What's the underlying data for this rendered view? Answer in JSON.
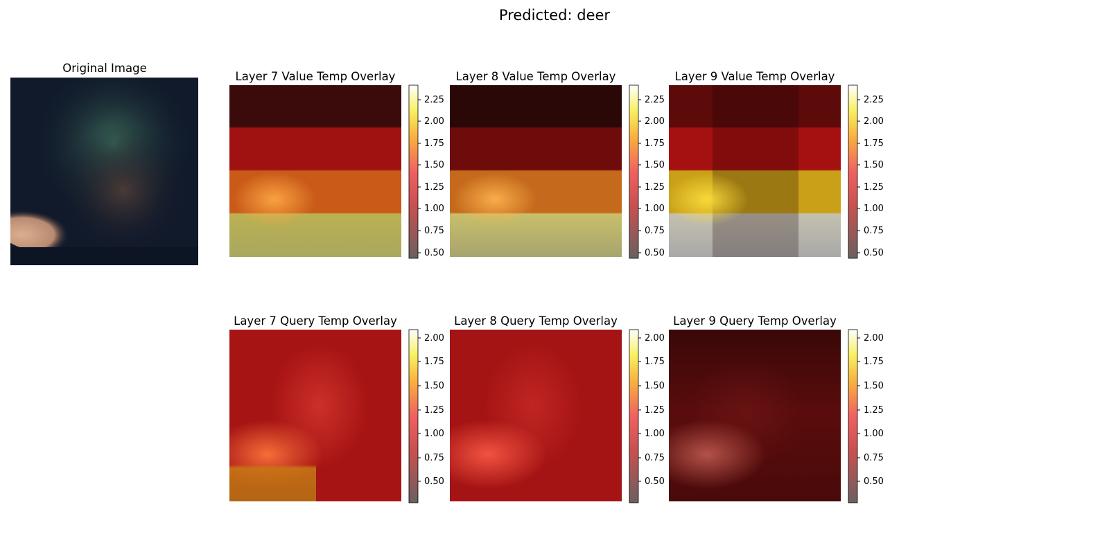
{
  "figure": {
    "title": "Predicted: deer"
  },
  "chart_data": [
    {
      "type": "heatmap",
      "title": "Original Image",
      "colorbar": null
    },
    {
      "type": "heatmap",
      "title": "Layer 7 Value Temp Overlay",
      "colorbar": {
        "range": [
          0.45,
          2.4
        ],
        "ticks": [
          "0.50",
          "0.75",
          "1.00",
          "1.25",
          "1.50",
          "1.75",
          "2.00",
          "2.25"
        ]
      }
    },
    {
      "type": "heatmap",
      "title": "Layer 8 Value Temp Overlay",
      "colorbar": {
        "range": [
          0.45,
          2.4
        ],
        "ticks": [
          "0.50",
          "0.75",
          "1.00",
          "1.25",
          "1.50",
          "1.75",
          "2.00",
          "2.25"
        ]
      }
    },
    {
      "type": "heatmap",
      "title": "Layer 9 Value Temp Overlay",
      "colorbar": {
        "range": [
          0.45,
          2.4
        ],
        "ticks": [
          "0.50",
          "0.75",
          "1.00",
          "1.25",
          "1.50",
          "1.75",
          "2.00",
          "2.25"
        ]
      }
    },
    {
      "type": "heatmap",
      "title": "Layer 7 Query Temp Overlay",
      "colorbar": {
        "range": [
          0.3,
          2.1
        ],
        "ticks": [
          "0.50",
          "0.75",
          "1.00",
          "1.25",
          "1.50",
          "1.75",
          "2.00"
        ]
      }
    },
    {
      "type": "heatmap",
      "title": "Layer 8 Query Temp Overlay",
      "colorbar": {
        "range": [
          0.3,
          2.1
        ],
        "ticks": [
          "0.50",
          "0.75",
          "1.00",
          "1.25",
          "1.50",
          "1.75",
          "2.00"
        ]
      }
    },
    {
      "type": "heatmap",
      "title": "Layer 9 Query Temp Overlay",
      "colorbar": {
        "range": [
          0.3,
          2.1
        ],
        "ticks": [
          "0.50",
          "0.75",
          "1.00",
          "1.25",
          "1.50",
          "1.75",
          "2.00"
        ]
      }
    }
  ]
}
